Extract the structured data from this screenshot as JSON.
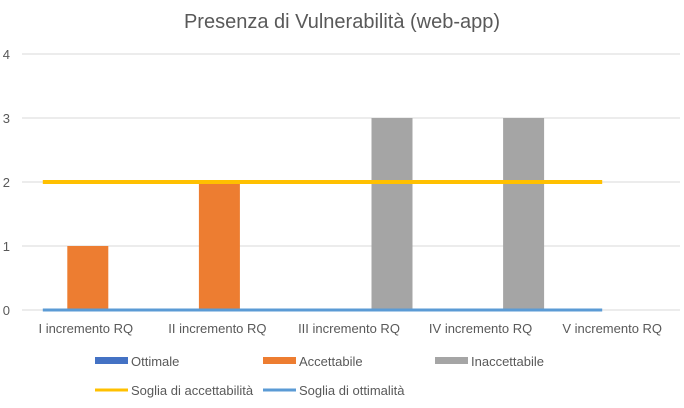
{
  "chart_data": {
    "type": "bar",
    "title": "Presenza di Vulnerabilità (web-app)",
    "categories": [
      "I incremento RQ",
      "II incremento RQ",
      "III incremento RQ",
      "IV incremento RQ",
      "V incremento RQ"
    ],
    "bar_series": [
      {
        "name": "Ottimale",
        "color": "#4472C4",
        "values": [
          0,
          0,
          0,
          0,
          0
        ]
      },
      {
        "name": "Accettabile",
        "color": "#ED7D31",
        "values": [
          1,
          2,
          0,
          0,
          0
        ]
      },
      {
        "name": "Inaccettabile",
        "color": "#A5A5A5",
        "values": [
          0,
          0,
          3,
          3,
          0
        ]
      }
    ],
    "line_series": [
      {
        "name": "Soglia di accettabilità",
        "color": "#FFC000",
        "values": [
          2,
          2,
          2,
          2,
          2
        ]
      },
      {
        "name": "Soglia di ottimalità",
        "color": "#5B9BD5",
        "values": [
          0,
          0,
          0,
          0,
          0
        ]
      }
    ],
    "ylim": [
      0,
      4
    ],
    "yticks": [
      0,
      1,
      2,
      3,
      4
    ],
    "grid": true,
    "legend": "bottom"
  }
}
